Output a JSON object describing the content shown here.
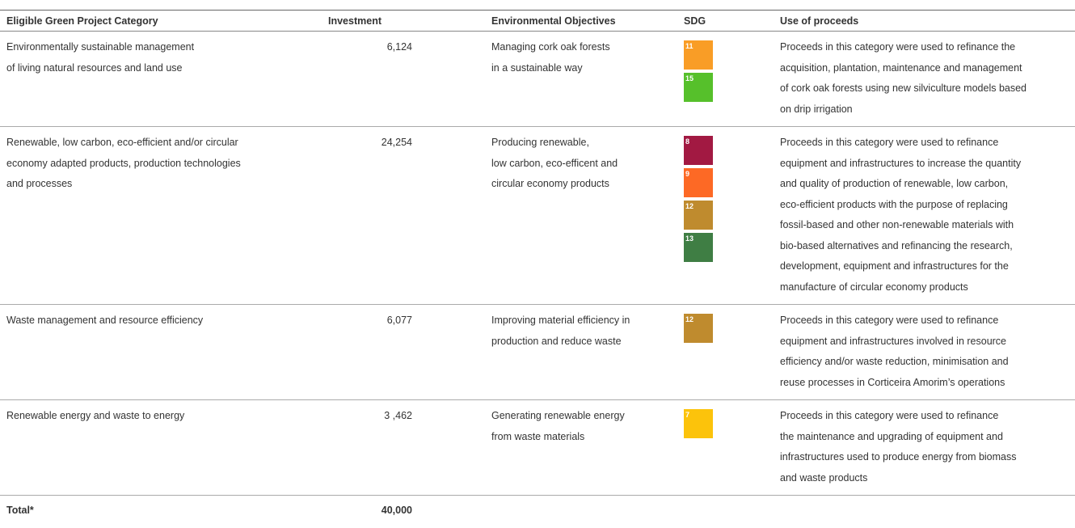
{
  "table": {
    "header": [
      "Eligible Green Project Category",
      "Investment",
      "Environmental Objectives",
      "SDG",
      "Use of proceeds"
    ],
    "rows": [
      {
        "category": [
          "Environmentally sustainable management",
          "of living natural resources and land use"
        ],
        "investment": "6,124",
        "objectives": [
          "Managing cork oak forests",
          "in a sustainable way"
        ],
        "sdg": [
          {
            "number": "11",
            "color": "#f99d26"
          },
          {
            "number": "15",
            "color": "#56c02b"
          }
        ],
        "proceeds": [
          "Proceeds in this category were used to refinance the",
          "acquisition, plantation, maintenance and management",
          "of cork oak forests using new silviculture models based",
          "on drip irrigation"
        ]
      },
      {
        "category": [
          "Renewable, low carbon, eco-efficient and/or circular",
          "economy adapted products, production technologies",
          "and processes"
        ],
        "investment": "24,254",
        "objectives": [
          "Producing renewable,",
          "low carbon, eco-efficent and",
          "circular economy products"
        ],
        "sdg": [
          {
            "number": "8",
            "color": "#a21942"
          },
          {
            "number": "9",
            "color": "#fd6925"
          },
          {
            "number": "12",
            "color": "#bf8b2e"
          },
          {
            "number": "13",
            "color": "#3f7e44"
          }
        ],
        "proceeds": [
          "Proceeds in this category were used to refinance",
          "equipment and infrastructures to increase the quantity",
          "and quality of production of renewable, low carbon,",
          "eco-efficient products with the purpose of replacing",
          "fossil-based and other non-renewable materials with",
          "bio-based alternatives and refinancing the research,",
          "development, equipment and infrastructures for the",
          "manufacture of circular economy products"
        ]
      },
      {
        "category": [
          "Waste management and resource efficiency"
        ],
        "investment": "6,077",
        "objectives": [
          "Improving material efficiency in",
          "production and reduce waste"
        ],
        "sdg": [
          {
            "number": "12",
            "color": "#bf8b2e"
          }
        ],
        "proceeds": [
          "Proceeds in this category were used to refinance",
          "equipment and infrastructures involved in resource",
          "efficiency and/or waste reduction, minimisation and",
          "reuse processes in Corticeira Amorim’s operations"
        ]
      },
      {
        "category": [
          "Renewable energy and waste to energy"
        ],
        "investment": "3 ,462",
        "objectives": [
          "Generating renewable energy",
          "from waste materials"
        ],
        "sdg": [
          {
            "number": "7",
            "color": "#fcc30b"
          }
        ],
        "proceeds": [
          "Proceeds in this category were used to refinance",
          "the maintenance and upgrading of equipment and",
          "infrastructures used to produce energy from biomass",
          "and waste products"
        ]
      }
    ],
    "total": {
      "label": "Total*",
      "value": "40,000"
    }
  }
}
